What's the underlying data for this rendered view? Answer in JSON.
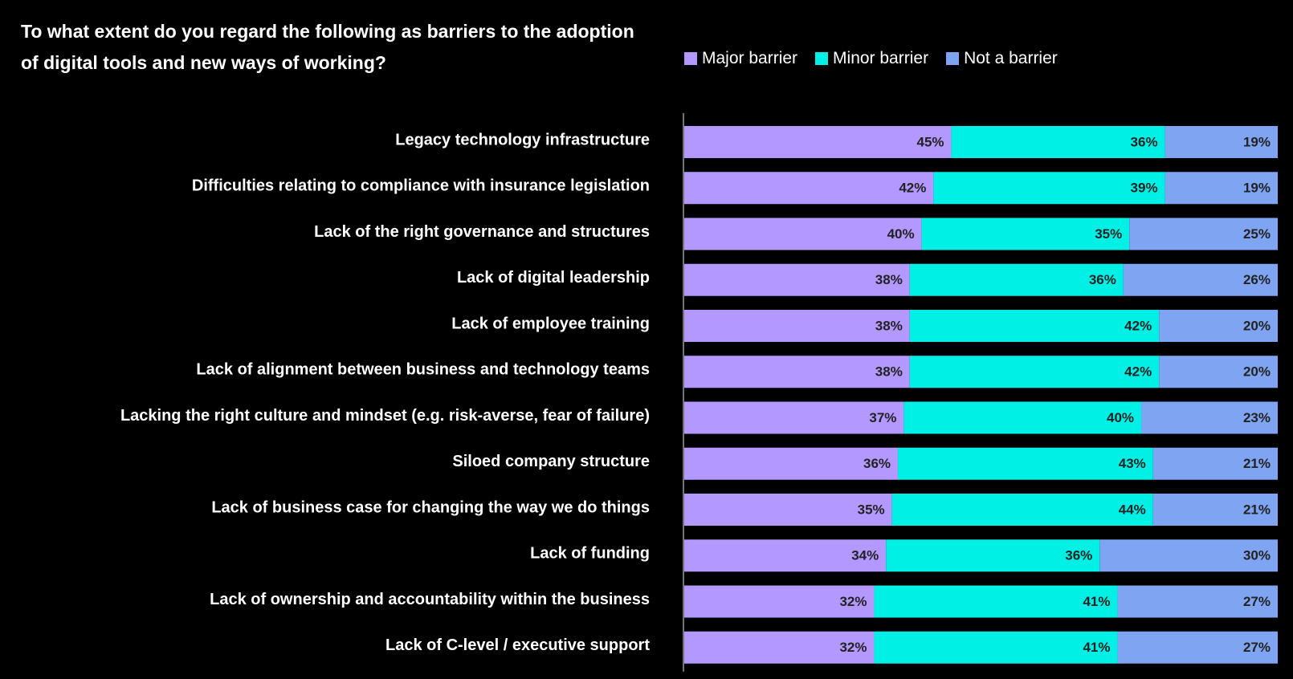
{
  "chart_data": {
    "type": "bar",
    "orientation": "horizontal",
    "stacked": true,
    "title": "To what extent do you regard the following as barriers to the adoption of digital tools and new ways of working?",
    "value_suffix": "%",
    "xlim": [
      0,
      100
    ],
    "grid": false,
    "legend_position": "top-right",
    "categories": [
      "Legacy technology infrastructure",
      "Difficulties relating to compliance with insurance legislation",
      "Lack of the right governance and structures",
      "Lack of digital leadership",
      "Lack of employee training",
      "Lack of alignment between business and technology teams",
      "Lacking the right culture and mindset (e.g. risk-averse, fear of failure)",
      "Siloed company structure",
      "Lack of business case for changing the way we do things",
      "Lack of funding",
      "Lack of ownership and accountability within the business",
      "Lack of C-level / executive support"
    ],
    "series": [
      {
        "name": "Major barrier",
        "color": "#b399ff",
        "values": [
          45,
          42,
          40,
          38,
          38,
          38,
          37,
          36,
          35,
          34,
          32,
          32
        ]
      },
      {
        "name": "Minor barrier",
        "color": "#00f0e6",
        "values": [
          36,
          39,
          35,
          36,
          42,
          42,
          40,
          43,
          44,
          36,
          41,
          41
        ]
      },
      {
        "name": "Not a barrier",
        "color": "#7fa4f2",
        "values": [
          19,
          19,
          25,
          26,
          20,
          20,
          23,
          21,
          21,
          30,
          27,
          27
        ]
      }
    ]
  }
}
